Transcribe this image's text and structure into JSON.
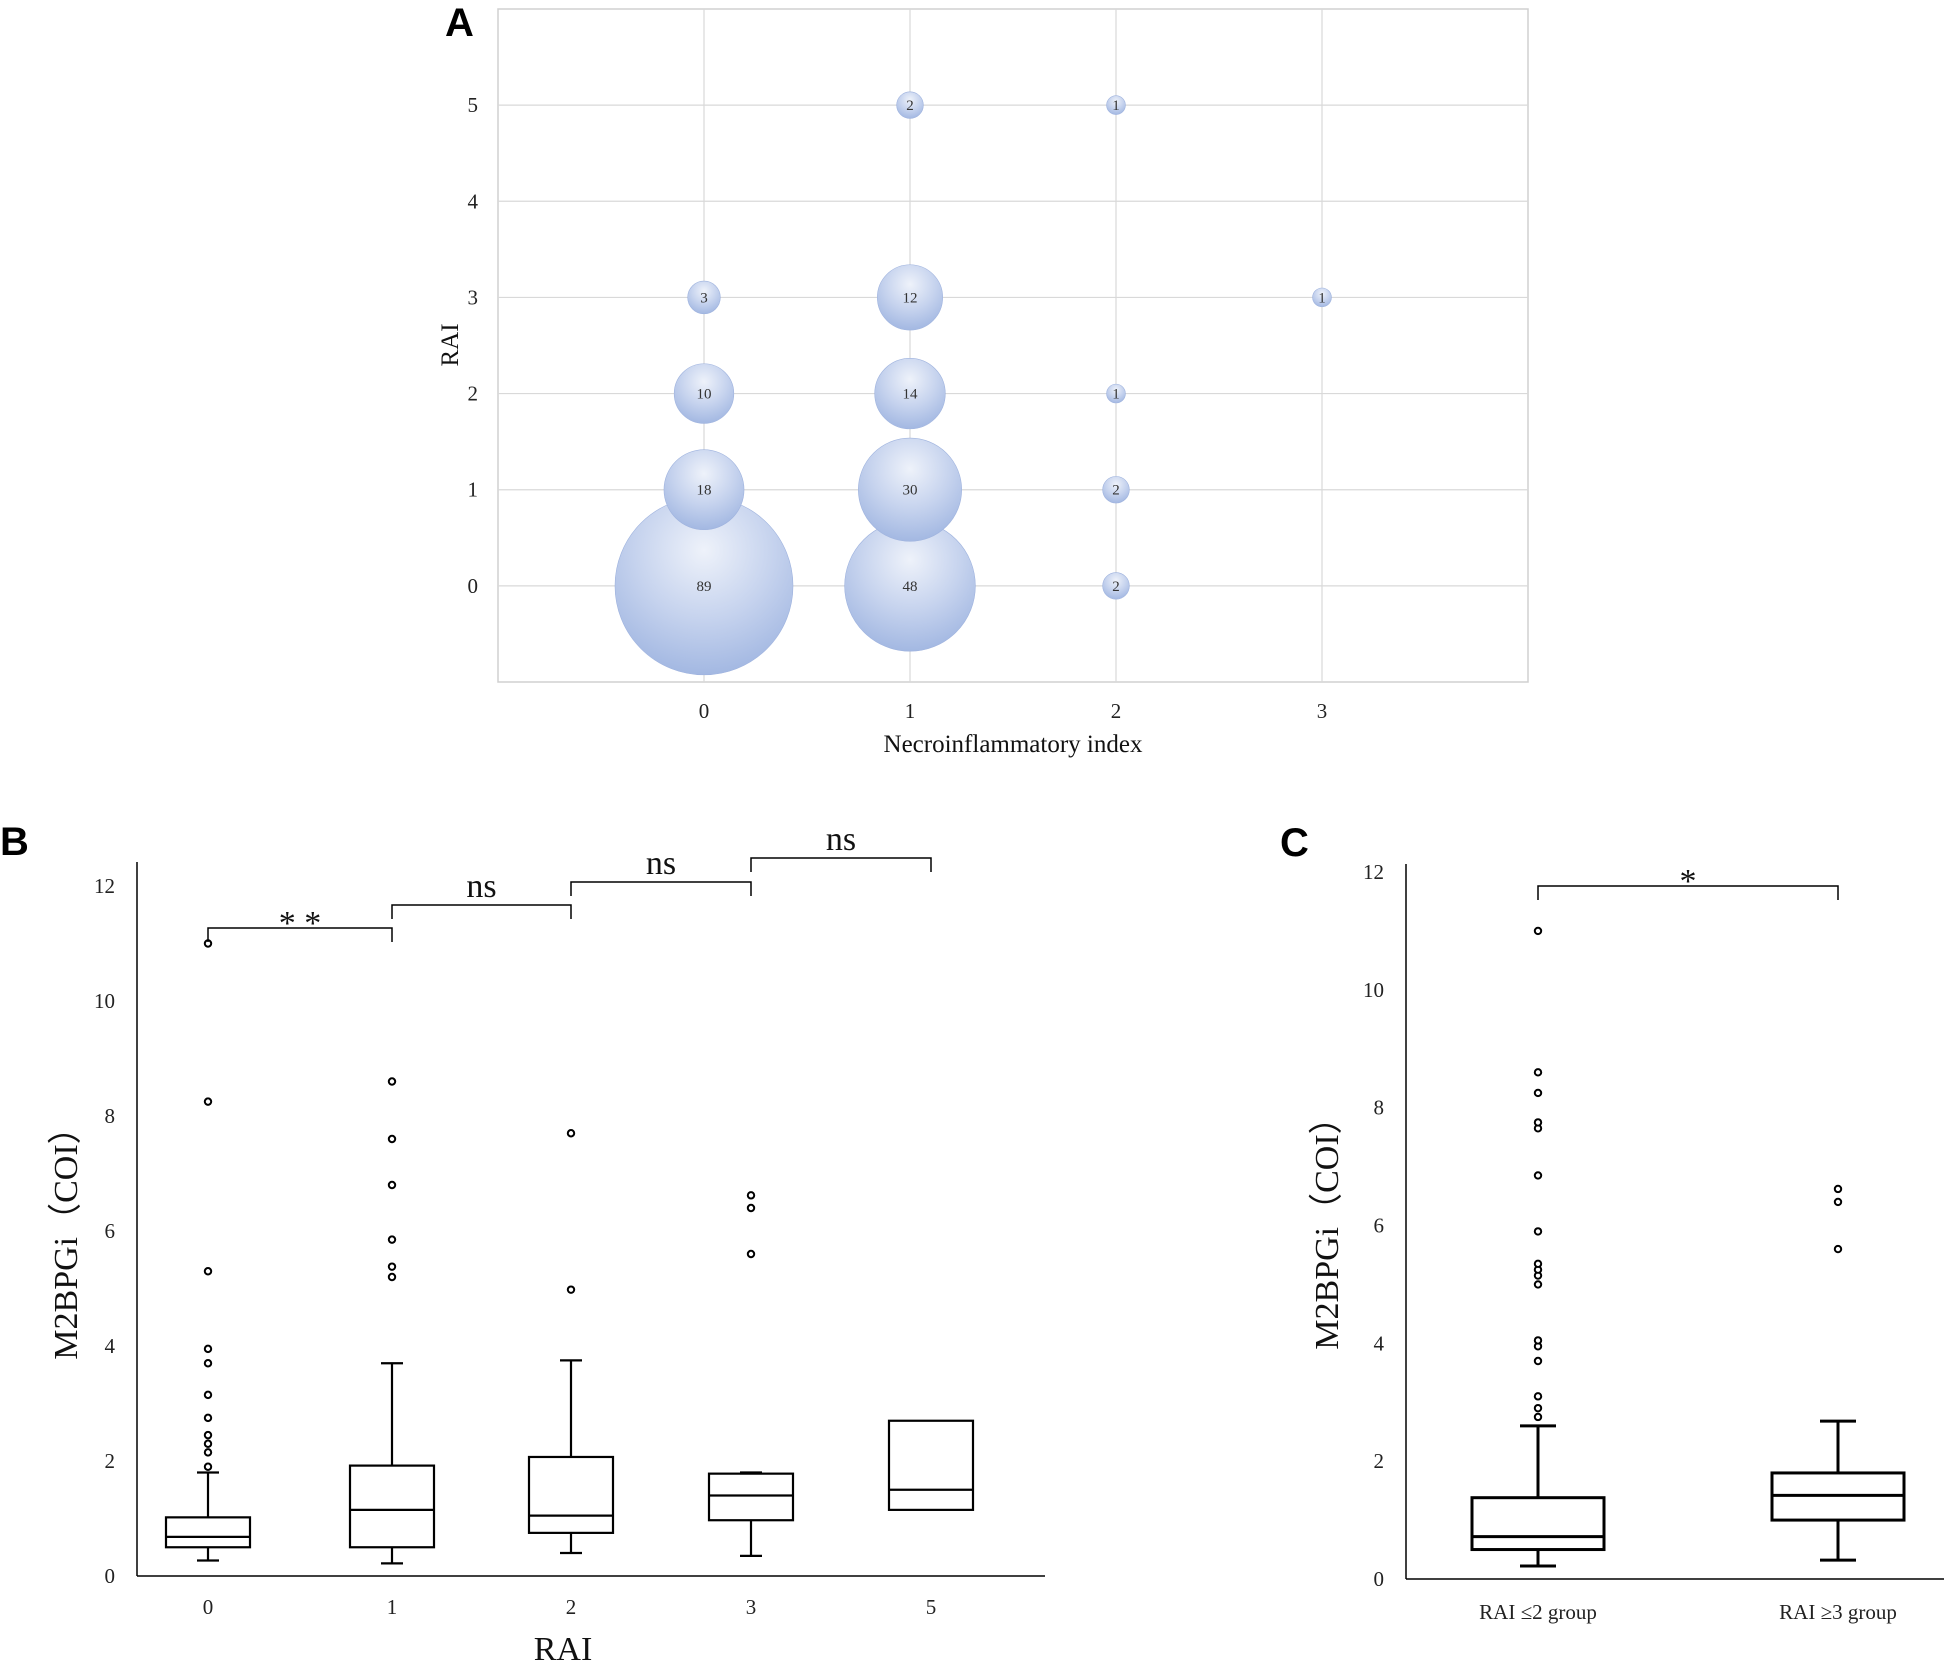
{
  "panels": {
    "A": {
      "letter": "A"
    },
    "B": {
      "letter": "B"
    },
    "C": {
      "letter": "C"
    }
  },
  "chart_data": [
    {
      "panel": "A",
      "type": "scatter",
      "subtype": "bubble",
      "xlabel": "Necroinflammatory index",
      "ylabel": "RAI",
      "xlim": [
        -1,
        4
      ],
      "ylim": [
        -1,
        6
      ],
      "x_ticks": [
        "0",
        "1",
        "2",
        "3"
      ],
      "y_ticks": [
        "0",
        "1",
        "2",
        "3",
        "4",
        "5"
      ],
      "grid": true,
      "bubble_color": "#a9bde3",
      "points": [
        {
          "x": 0,
          "y": 0,
          "n": 89
        },
        {
          "x": 0,
          "y": 1,
          "n": 18
        },
        {
          "x": 0,
          "y": 2,
          "n": 10
        },
        {
          "x": 0,
          "y": 3,
          "n": 3
        },
        {
          "x": 1,
          "y": 0,
          "n": 48
        },
        {
          "x": 1,
          "y": 1,
          "n": 30
        },
        {
          "x": 1,
          "y": 2,
          "n": 14
        },
        {
          "x": 1,
          "y": 3,
          "n": 12
        },
        {
          "x": 1,
          "y": 5,
          "n": 2
        },
        {
          "x": 2,
          "y": 0,
          "n": 2
        },
        {
          "x": 2,
          "y": 1,
          "n": 2
        },
        {
          "x": 2,
          "y": 2,
          "n": 1
        },
        {
          "x": 2,
          "y": 5,
          "n": 1
        },
        {
          "x": 3,
          "y": 3,
          "n": 1
        }
      ]
    },
    {
      "panel": "B",
      "type": "box",
      "xlabel": "RAI",
      "ylabel": "M2BPGi（COI）",
      "ylim": [
        0,
        12
      ],
      "y_ticks": [
        "0",
        "2",
        "4",
        "6",
        "8",
        "10",
        "12"
      ],
      "categories": [
        "0",
        "1",
        "2",
        "3",
        "5"
      ],
      "boxes": [
        {
          "whisker_low": 0.27,
          "q1": 0.5,
          "median": 0.68,
          "q3": 1.02,
          "whisker_high": 1.8,
          "outliers": [
            1.9,
            2.15,
            2.3,
            2.45,
            2.75,
            3.15,
            3.7,
            3.95,
            5.3,
            8.25,
            11.0
          ]
        },
        {
          "whisker_low": 0.22,
          "q1": 0.5,
          "median": 1.15,
          "q3": 1.92,
          "whisker_high": 3.7,
          "outliers": [
            5.2,
            5.38,
            5.85,
            6.8,
            7.6,
            8.6
          ]
        },
        {
          "whisker_low": 0.4,
          "q1": 0.75,
          "median": 1.05,
          "q3": 2.07,
          "whisker_high": 3.75,
          "outliers": [
            4.98,
            7.7
          ]
        },
        {
          "whisker_low": 0.35,
          "q1": 0.97,
          "median": 1.4,
          "q3": 1.78,
          "whisker_high": 1.8,
          "outliers": [
            5.6,
            6.4,
            6.62
          ]
        },
        {
          "whisker_low": 1.15,
          "q1": 1.15,
          "median": 1.5,
          "q3": 2.7,
          "whisker_high": 2.7,
          "outliers": []
        }
      ],
      "comparisons": [
        {
          "from": "0",
          "to": "1",
          "label": "* *"
        },
        {
          "from": "1",
          "to": "2",
          "label": "ns"
        },
        {
          "from": "2",
          "to": "3",
          "label": "ns"
        },
        {
          "from": "3",
          "to": "5",
          "label": "ns"
        }
      ]
    },
    {
      "panel": "C",
      "type": "box",
      "xlabel": "",
      "ylabel": "M2BPGi（COI）",
      "ylim": [
        0,
        12
      ],
      "y_ticks": [
        "0",
        "2",
        "4",
        "6",
        "8",
        "10",
        "12"
      ],
      "categories": [
        "RAI ≤2 group",
        "RAI ≥3 group"
      ],
      "boxes": [
        {
          "whisker_low": 0.22,
          "q1": 0.5,
          "median": 0.72,
          "q3": 1.38,
          "whisker_high": 2.6,
          "outliers": [
            2.75,
            2.9,
            3.1,
            3.7,
            3.95,
            4.05,
            5.0,
            5.15,
            5.25,
            5.35,
            5.9,
            6.85,
            7.65,
            7.75,
            8.25,
            8.6,
            11.0
          ]
        },
        {
          "whisker_low": 0.32,
          "q1": 1.0,
          "median": 1.42,
          "q3": 1.8,
          "whisker_high": 2.68,
          "outliers": [
            5.6,
            6.4,
            6.62
          ]
        }
      ],
      "comparisons": [
        {
          "from": "RAI ≤2 group",
          "to": "RAI ≥3 group",
          "label": "*"
        }
      ]
    }
  ]
}
